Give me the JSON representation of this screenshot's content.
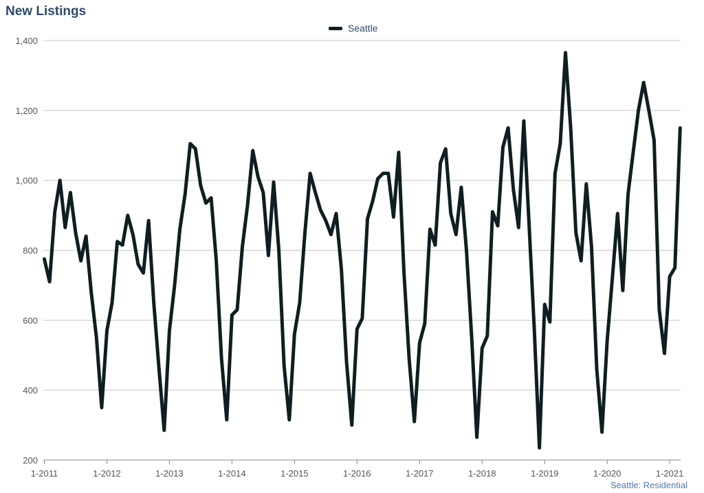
{
  "colors": {
    "line": "#0f1e21",
    "grid": "#c8c8c8",
    "title": "#2e4a6b",
    "footer": "#4a7ab5"
  },
  "chart_data": {
    "type": "line",
    "title": "New Listings",
    "footer": "Seattle: Residential",
    "xlabel": "",
    "ylabel": "",
    "ylim": [
      200,
      1400
    ],
    "yticks": [
      200,
      400,
      600,
      800,
      1000,
      1200,
      1400
    ],
    "ytick_labels": [
      "200",
      "400",
      "600",
      "800",
      "1,000",
      "1,200",
      "1,400"
    ],
    "xticks": [
      "1-2011",
      "1-2012",
      "1-2013",
      "1-2014",
      "1-2015",
      "1-2016",
      "1-2017",
      "1-2018",
      "1-2019",
      "1-2020",
      "1-2021"
    ],
    "grid": true,
    "legend_position": "top-center",
    "x_start": "1-2011",
    "x_end": "3-2021",
    "series": [
      {
        "name": "Seattle",
        "values": [
          775,
          710,
          910,
          1000,
          865,
          965,
          850,
          770,
          840,
          680,
          550,
          350,
          570,
          650,
          825,
          815,
          900,
          845,
          760,
          735,
          885,
          650,
          460,
          285,
          570,
          700,
          860,
          960,
          1105,
          1090,
          985,
          935,
          950,
          770,
          490,
          315,
          615,
          630,
          810,
          930,
          1085,
          1010,
          965,
          785,
          995,
          800,
          470,
          315,
          560,
          650,
          850,
          1020,
          965,
          915,
          885,
          845,
          905,
          745,
          480,
          300,
          575,
          605,
          890,
          940,
          1005,
          1020,
          1020,
          895,
          1080,
          740,
          490,
          310,
          535,
          590,
          860,
          815,
          1050,
          1090,
          905,
          845,
          980,
          800,
          550,
          265,
          520,
          555,
          910,
          870,
          1095,
          1150,
          975,
          865,
          1170,
          880,
          580,
          235,
          645,
          595,
          1020,
          1105,
          1365,
          1150,
          850,
          770,
          990,
          810,
          460,
          280,
          540,
          720,
          905,
          685,
          960,
          1080,
          1200,
          1280,
          1200,
          1115,
          630,
          505,
          725,
          750,
          1150
        ]
      }
    ]
  }
}
